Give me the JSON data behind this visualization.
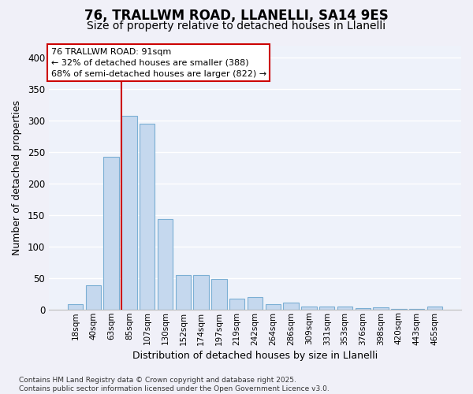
{
  "title1": "76, TRALLWM ROAD, LLANELLI, SA14 9ES",
  "title2": "Size of property relative to detached houses in Llanelli",
  "xlabel": "Distribution of detached houses by size in Llanelli",
  "ylabel": "Number of detached properties",
  "categories": [
    "18sqm",
    "40sqm",
    "63sqm",
    "85sqm",
    "107sqm",
    "130sqm",
    "152sqm",
    "174sqm",
    "197sqm",
    "219sqm",
    "242sqm",
    "264sqm",
    "286sqm",
    "309sqm",
    "331sqm",
    "353sqm",
    "376sqm",
    "398sqm",
    "420sqm",
    "443sqm",
    "465sqm"
  ],
  "values": [
    8,
    39,
    243,
    308,
    295,
    144,
    55,
    55,
    48,
    17,
    19,
    8,
    11,
    5,
    4,
    4,
    2,
    3,
    1,
    1,
    5
  ],
  "bar_color": "#c5d8ee",
  "bar_edge_color": "#7bafd4",
  "axes_bg_color": "#eef2fa",
  "fig_bg_color": "#f0f0f8",
  "grid_color": "#ffffff",
  "vline_color": "#cc0000",
  "vline_bar_index": 3,
  "annotation_line1": "76 TRALLWM ROAD: 91sqm",
  "annotation_line2": "← 32% of detached houses are smaller (388)",
  "annotation_line3": "68% of semi-detached houses are larger (822) →",
  "annotation_box_edgecolor": "#cc0000",
  "footer_text": "Contains HM Land Registry data © Crown copyright and database right 2025.\nContains public sector information licensed under the Open Government Licence v3.0.",
  "ylim": [
    0,
    420
  ],
  "yticks": [
    0,
    50,
    100,
    150,
    200,
    250,
    300,
    350,
    400
  ],
  "title1_fontsize": 12,
  "title2_fontsize": 10,
  "xlabel_fontsize": 9,
  "ylabel_fontsize": 9,
  "xtick_fontsize": 7.5,
  "ytick_fontsize": 8.5,
  "annotation_fontsize": 8,
  "footer_fontsize": 6.5
}
